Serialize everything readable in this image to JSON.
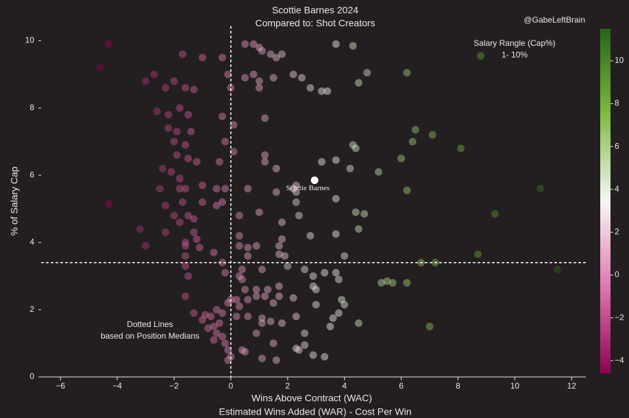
{
  "chart_data": {
    "type": "scatter",
    "title": [
      "Scottie Barnes 2024",
      "Compared to: Shot Creators"
    ],
    "credit": "@GabeLeftBrain",
    "x_label": [
      "Wins Above Contract (WAC)",
      "Estimated Wins Added (WAR) - Cost Per Win"
    ],
    "y_label": "% of Salary Cap",
    "annotations": [
      [
        "Dotted Lines",
        "based on Position Medians"
      ],
      [
        "Salary Rangle (Cap%)",
        "1- 10%"
      ]
    ],
    "highlight": {
      "label": "Scottie Barnes",
      "x": 2.95,
      "y": 5.85,
      "color": "#ffffff"
    },
    "medians": {
      "x": 0,
      "y": 3.4
    },
    "xlim": [
      -6.68,
      12.5
    ],
    "xticks": [
      {
        "value": -6,
        "label": "−6"
      },
      {
        "value": -4,
        "label": "−4"
      },
      {
        "value": -2,
        "label": "−2"
      },
      0,
      2,
      4,
      6,
      8,
      10,
      12
    ],
    "ylim": [
      0,
      10.5
    ],
    "yticks": [
      0,
      2,
      4,
      6,
      8,
      10
    ],
    "colorbar": {
      "lim": [
        -4.6,
        11.5
      ],
      "colors": [
        "#8e0152",
        "#de77ae",
        "#f7f7f7",
        "#7fbc41",
        "#276419"
      ],
      "ticks": [
        {
          "value": -4,
          "label": "−4"
        },
        {
          "value": -2,
          "label": "−2"
        },
        0,
        2,
        4,
        6,
        8,
        10
      ]
    },
    "x": [
      -4.3,
      -4.6,
      -1.7,
      -1.0,
      -0.3,
      0.5,
      0.8,
      1.0,
      1.1,
      1.4,
      1.6,
      1.8,
      3.7,
      4.3,
      6.2,
      8.8,
      -3.0,
      -2.7,
      -2.3,
      -2.0,
      -1.6,
      -1.3,
      -0.1,
      0,
      0.5,
      0.8,
      1.0,
      1.0,
      1.5,
      2.2,
      2.5,
      2.8,
      3.2,
      3.4,
      4.5,
      4.8,
      -2.6,
      -2.2,
      -1.8,
      -1.5,
      -0.3,
      0.1,
      1.2,
      -2.2,
      -1.9,
      -1.4,
      -2.0,
      -1.6,
      -0.2,
      0.1,
      -1.9,
      -1.5,
      -1.2,
      -0.4,
      1.2,
      1.2,
      1.6,
      3.2,
      3.7,
      4.3,
      4.4,
      4.2,
      5.2,
      6.0,
      6.4,
      6.5,
      7.1,
      8.1,
      -2.4,
      -2.1,
      -1.8,
      -2.5,
      -1.8,
      -1.6,
      -1.0,
      -0.5,
      -0.2,
      0.6,
      1.6,
      2.2,
      2.3,
      2.3,
      2.3,
      3.7,
      6.2,
      10.9,
      -4.3,
      -2.3,
      -1.7,
      -1.0,
      -0.5,
      -0.3,
      -2.0,
      -1.5,
      -1.8,
      -1.3,
      0.3,
      1.0,
      1.8,
      2.4,
      4.4,
      4.7,
      9.3,
      -3.2,
      -2.3,
      -1.3,
      -1.6,
      -1.2,
      0.3,
      1.8,
      2.8,
      3.7,
      4.5,
      -3.0,
      -1.6,
      -1.1,
      -0.6,
      0.3,
      0.6,
      0.9,
      1.7,
      1.7,
      1.9,
      4.0,
      6.7,
      7.2,
      8.7,
      11.5,
      -1.6,
      -1.6,
      -1.5,
      -0.3,
      -0.2,
      0.3,
      0.4,
      0.6,
      1.1,
      2.0,
      2.6,
      2.9,
      3.3,
      3.7,
      3.8,
      5.7,
      5.3,
      5.5,
      6.2,
      0.4,
      0.5,
      0.9,
      1.3,
      1.7,
      2.9,
      3.0,
      0.2,
      0.6,
      0.9,
      1.2,
      1.7,
      2.2,
      3.9,
      0,
      -0.1,
      -1.6,
      0.3,
      1.5,
      3.0,
      4.0,
      -0.5,
      -0.3,
      -0.7,
      -0.9,
      -1.3,
      -1.0,
      -0.4,
      -0.6,
      -0.8,
      -0.5,
      -0.3,
      -0.6,
      -0.2,
      -0.1,
      -0.1,
      0.2,
      0.6,
      1.1,
      1.4,
      1.8,
      2.3,
      3.6,
      3.8,
      4.5,
      7.0,
      1.1,
      2.6,
      3.5,
      0.9,
      1.5,
      2.3,
      2.6,
      2.4,
      0.4,
      0.5,
      1.1,
      1.6,
      2.9,
      3.3,
      0
    ],
    "values": [
      9.9,
      9.2,
      9.6,
      9.5,
      9.5,
      9.9,
      9.9,
      9.8,
      9.7,
      9.6,
      9.5,
      9.6,
      9.9,
      9.85,
      9.05,
      9.55,
      8.8,
      9.0,
      8.6,
      8.8,
      8.6,
      8.55,
      9.0,
      8.6,
      8.9,
      9.0,
      8.6,
      8.8,
      8.9,
      9.0,
      8.9,
      8.6,
      8.5,
      8.5,
      8.75,
      9.05,
      7.9,
      7.8,
      8.0,
      7.8,
      7.75,
      7.5,
      7.7,
      7.4,
      7.3,
      7.3,
      7.0,
      6.9,
      7.0,
      6.7,
      6.6,
      6.5,
      6.4,
      6.4,
      6.6,
      6.4,
      6.2,
      6.4,
      6.45,
      6.9,
      6.8,
      6.2,
      6.1,
      6.5,
      7.0,
      7.35,
      7.2,
      6.8,
      6.2,
      6.1,
      5.9,
      5.6,
      5.6,
      5.6,
      5.7,
      5.6,
      5.6,
      5.6,
      5.5,
      5.6,
      5.7,
      5.5,
      5.2,
      5.3,
      5.55,
      5.6,
      5.15,
      5.1,
      5.2,
      5.2,
      5.1,
      5.2,
      4.8,
      4.8,
      4.6,
      4.7,
      4.8,
      4.9,
      4.6,
      4.8,
      4.9,
      4.85,
      4.85,
      4.4,
      4.3,
      4.3,
      4.0,
      4.1,
      4.2,
      4.1,
      4.2,
      4.25,
      4.4,
      3.9,
      3.9,
      3.85,
      3.7,
      3.9,
      3.85,
      3.9,
      3.9,
      3.65,
      3.6,
      3.6,
      3.4,
      3.4,
      3.65,
      3.2,
      3.6,
      3.3,
      3.0,
      3.4,
      3.1,
      3.0,
      3.2,
      3.6,
      3.2,
      3.3,
      3.2,
      3.0,
      3.1,
      3.1,
      2.9,
      2.8,
      2.8,
      2.85,
      2.8,
      2.9,
      2.6,
      2.6,
      2.6,
      2.7,
      2.7,
      2.6,
      2.3,
      2.3,
      2.4,
      2.4,
      2.4,
      2.35,
      2.3,
      2.3,
      2.2,
      2.4,
      2.1,
      2.2,
      2.15,
      2.15,
      2.0,
      1.9,
      1.8,
      1.85,
      1.9,
      1.7,
      1.6,
      1.5,
      1.45,
      1.3,
      1.2,
      1.1,
      1.0,
      0.8,
      0.5,
      1.8,
      1.8,
      1.75,
      1.65,
      1.6,
      1.8,
      1.75,
      1.9,
      1.6,
      1.5,
      1.6,
      1.3,
      1.5,
      1.3,
      1.0,
      0.85,
      0.95,
      0.8,
      0.8,
      0.75,
      0.55,
      0.5,
      0.65,
      0.6,
      0.6
    ]
  }
}
